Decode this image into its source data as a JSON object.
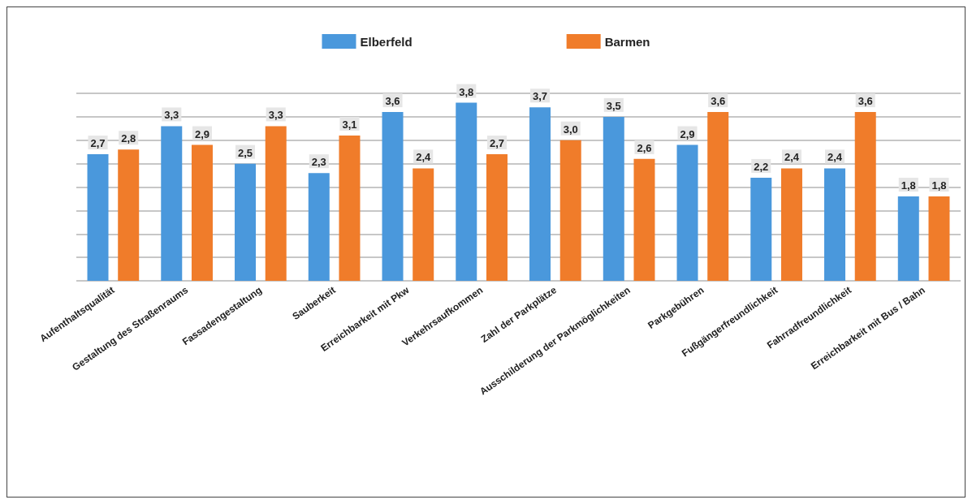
{
  "chart_data": {
    "type": "bar",
    "categories": [
      "Aufenthaltsqualität",
      "Gestaltung des Straßenraums",
      "Fassadengestaltung",
      "Sauberkeit",
      "Erreichbarkeit mit Pkw",
      "Verkehrsaufkommen",
      "Zahl der Parkplätze",
      "Ausschilderung der Parkmöglichkeiten",
      "Parkgebühren",
      "Fußgängerfreundlichkeit",
      "Fahrradfreundlichkeit",
      "Erreichbarkeit mit Bus / Bahn"
    ],
    "series": [
      {
        "name": "Elberfeld",
        "color": "#4a98dc",
        "values": [
          2.7,
          3.3,
          2.5,
          2.3,
          3.6,
          3.8,
          3.7,
          3.5,
          2.9,
          2.2,
          2.4,
          1.8
        ],
        "value_labels": [
          "2,7",
          "3,3",
          "2,5",
          "2,3",
          "3,6",
          "3,8",
          "3,7",
          "3,5",
          "2,9",
          "2,2",
          "2,4",
          "1,8"
        ]
      },
      {
        "name": "Barmen",
        "color": "#f07c2a",
        "values": [
          2.8,
          2.9,
          3.3,
          3.1,
          2.4,
          2.7,
          3.0,
          2.6,
          3.6,
          2.4,
          3.6,
          1.8
        ],
        "value_labels": [
          "2,8",
          "2,9",
          "3,3",
          "3,1",
          "2,4",
          "2,7",
          "3,0",
          "2,6",
          "3,6",
          "2,4",
          "3,6",
          "1,8"
        ]
      }
    ],
    "ylim": [
      0,
      4
    ],
    "yticks": [
      {
        "value": 0,
        "label": null
      },
      {
        "value": 0.5,
        "label": null
      },
      {
        "value": 1,
        "label": null
      },
      {
        "value": 1.5,
        "label": null
      },
      {
        "value": 2,
        "label": null
      },
      {
        "value": 2.5,
        "label": null
      },
      {
        "value": 3,
        "label": null
      },
      {
        "value": 3.5,
        "label": null
      },
      {
        "value": 4,
        "label": null
      }
    ],
    "tick_labels": "x",
    "grid": "y",
    "legend": "top"
  }
}
